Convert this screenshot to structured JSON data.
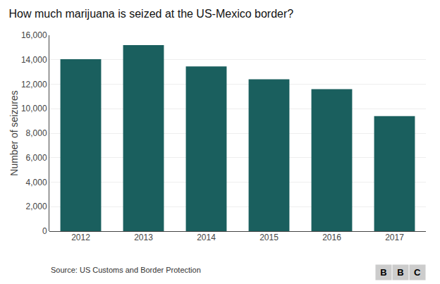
{
  "chart_data": {
    "type": "bar",
    "title": "How much marijuana is seized at the US-Mexico border?",
    "ylabel": "Number of seizures",
    "annotations": [
      "Source: US Customs and Border Protection",
      "BBC"
    ],
    "categories": [
      "2012",
      "2013",
      "2014",
      "2015",
      "2016",
      "2017"
    ],
    "values": [
      14050,
      15200,
      13450,
      12400,
      11600,
      9400
    ],
    "color": "#1a5f5e",
    "ylim": [
      0,
      16000
    ],
    "yticks": [
      0,
      {
        "value": 2000,
        "label": "2,000"
      },
      {
        "value": 4000,
        "label": "4,000"
      },
      {
        "value": 6000,
        "label": "6,000"
      },
      {
        "value": 8000,
        "label": "8,000"
      },
      {
        "value": 10000,
        "label": "10,000"
      },
      {
        "value": 12000,
        "label": "12,000"
      },
      {
        "value": 14000,
        "label": "14,000"
      },
      {
        "value": 16000,
        "label": "16,000"
      }
    ],
    "grid": true
  }
}
